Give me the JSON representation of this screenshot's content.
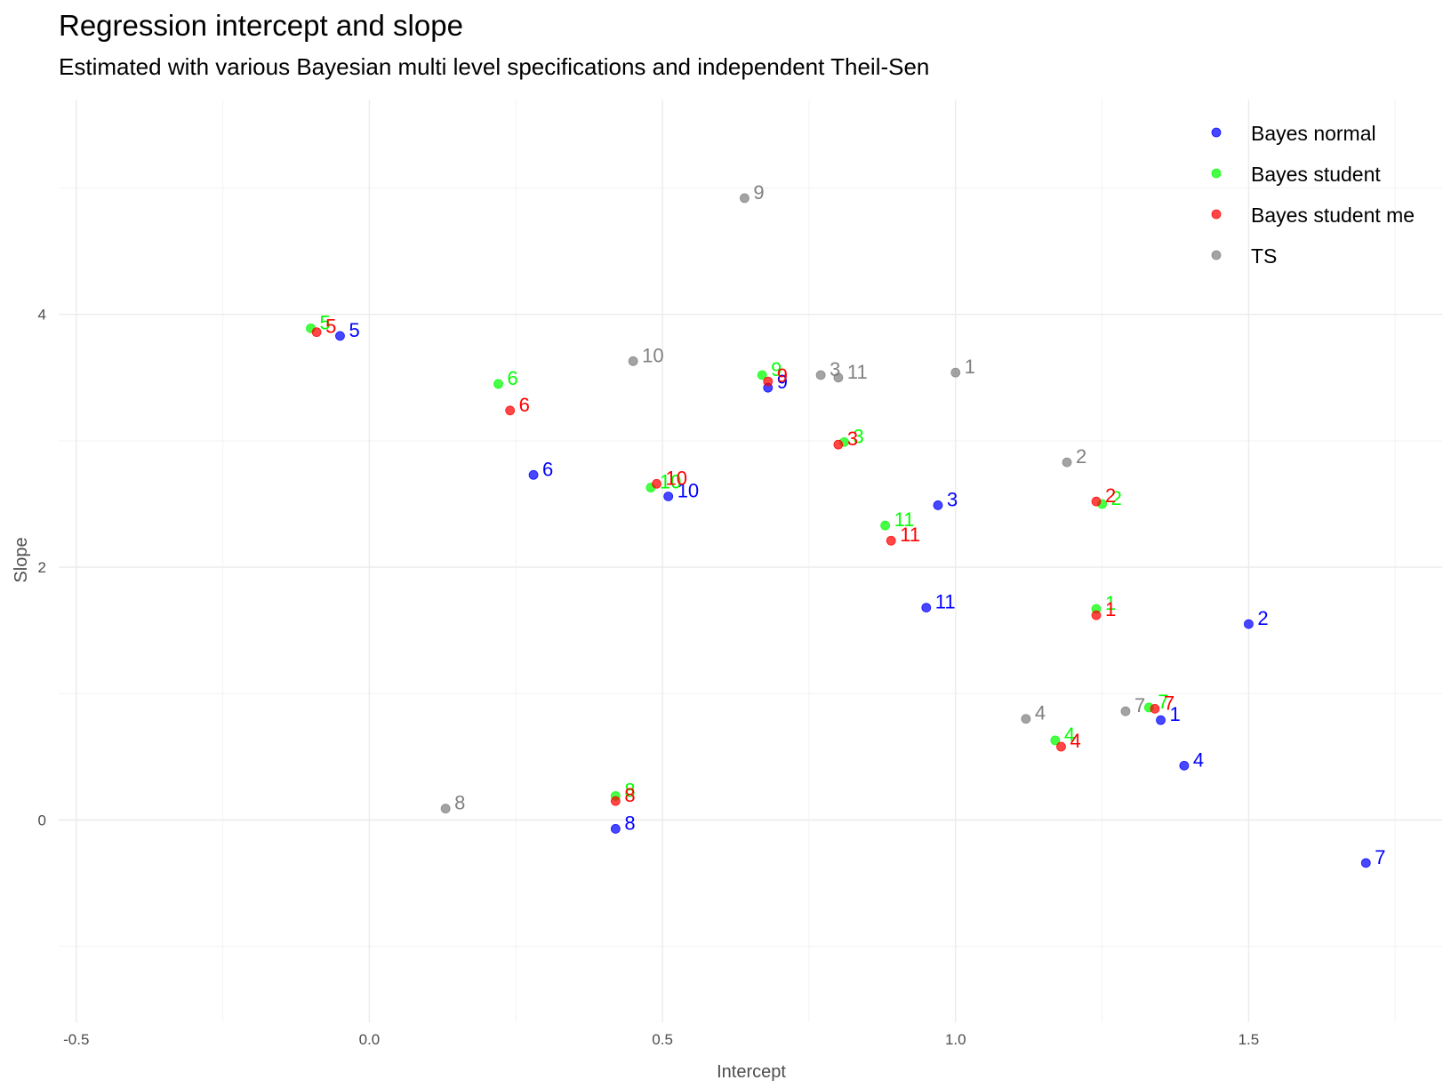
{
  "chart_data": {
    "type": "scatter",
    "title": "Regression intercept and slope",
    "subtitle": "Estimated with various Bayesian multi level specifications and independent Theil-Sen",
    "xlabel": "Intercept",
    "ylabel": "Slope",
    "xlim": [
      -0.53,
      1.83
    ],
    "ylim": [
      -1.6,
      5.7
    ],
    "x_ticks": [
      -0.5,
      0.0,
      0.5,
      1.0,
      1.5
    ],
    "x_tick_labels": [
      "-0.5",
      "0.0",
      "0.5",
      "1.0",
      "1.5"
    ],
    "y_ticks": [
      0,
      2,
      4
    ],
    "y_tick_labels": [
      "0",
      "2",
      "4"
    ],
    "grid": true,
    "legend_position": "top-right",
    "series": [
      {
        "name": "Bayes normal",
        "color": "#0000ff",
        "points": [
          {
            "label": "1",
            "x": 1.35,
            "y": 0.79
          },
          {
            "label": "2",
            "x": 1.5,
            "y": 1.55
          },
          {
            "label": "3",
            "x": 0.97,
            "y": 2.49
          },
          {
            "label": "4",
            "x": 1.39,
            "y": 0.43
          },
          {
            "label": "5",
            "x": -0.05,
            "y": 3.83
          },
          {
            "label": "6",
            "x": 0.28,
            "y": 2.73
          },
          {
            "label": "7",
            "x": 1.7,
            "y": -0.34
          },
          {
            "label": "8",
            "x": 0.42,
            "y": -0.07
          },
          {
            "label": "9",
            "x": 0.68,
            "y": 3.42
          },
          {
            "label": "10",
            "x": 0.51,
            "y": 2.56
          },
          {
            "label": "11",
            "x": 0.95,
            "y": 1.68
          }
        ]
      },
      {
        "name": "Bayes student",
        "color": "#00ff00",
        "points": [
          {
            "label": "1",
            "x": 1.24,
            "y": 1.67
          },
          {
            "label": "2",
            "x": 1.25,
            "y": 2.5
          },
          {
            "label": "3",
            "x": 0.81,
            "y": 2.99
          },
          {
            "label": "4",
            "x": 1.17,
            "y": 0.63
          },
          {
            "label": "5",
            "x": -0.1,
            "y": 3.89
          },
          {
            "label": "6",
            "x": 0.22,
            "y": 3.45
          },
          {
            "label": "7",
            "x": 1.33,
            "y": 0.89
          },
          {
            "label": "8",
            "x": 0.42,
            "y": 0.19
          },
          {
            "label": "9",
            "x": 0.67,
            "y": 3.52
          },
          {
            "label": "10",
            "x": 0.48,
            "y": 2.63
          },
          {
            "label": "11",
            "x": 0.88,
            "y": 2.33
          }
        ]
      },
      {
        "name": "Bayes student me",
        "color": "#ff0000",
        "points": [
          {
            "label": "1",
            "x": 1.24,
            "y": 1.62
          },
          {
            "label": "2",
            "x": 1.24,
            "y": 2.52
          },
          {
            "label": "3",
            "x": 0.8,
            "y": 2.97
          },
          {
            "label": "4",
            "x": 1.18,
            "y": 0.58
          },
          {
            "label": "5",
            "x": -0.09,
            "y": 3.86
          },
          {
            "label": "6",
            "x": 0.24,
            "y": 3.24
          },
          {
            "label": "7",
            "x": 1.34,
            "y": 0.88
          },
          {
            "label": "8",
            "x": 0.42,
            "y": 0.15
          },
          {
            "label": "9",
            "x": 0.68,
            "y": 3.47
          },
          {
            "label": "10",
            "x": 0.49,
            "y": 2.66
          },
          {
            "label": "11",
            "x": 0.89,
            "y": 2.21
          }
        ]
      },
      {
        "name": "TS",
        "color": "#808080",
        "points": [
          {
            "label": "1",
            "x": 1.0,
            "y": 3.54
          },
          {
            "label": "2",
            "x": 1.19,
            "y": 2.83
          },
          {
            "label": "3",
            "x": 0.77,
            "y": 3.52
          },
          {
            "label": "4",
            "x": 1.12,
            "y": 0.8
          },
          {
            "label": "7",
            "x": 1.29,
            "y": 0.86
          },
          {
            "label": "8",
            "x": 0.13,
            "y": 0.09
          },
          {
            "label": "9",
            "x": 0.64,
            "y": 4.92
          },
          {
            "label": "10",
            "x": 0.45,
            "y": 3.63
          },
          {
            "label": "11",
            "x": 0.8,
            "y": 3.5
          }
        ]
      }
    ]
  }
}
